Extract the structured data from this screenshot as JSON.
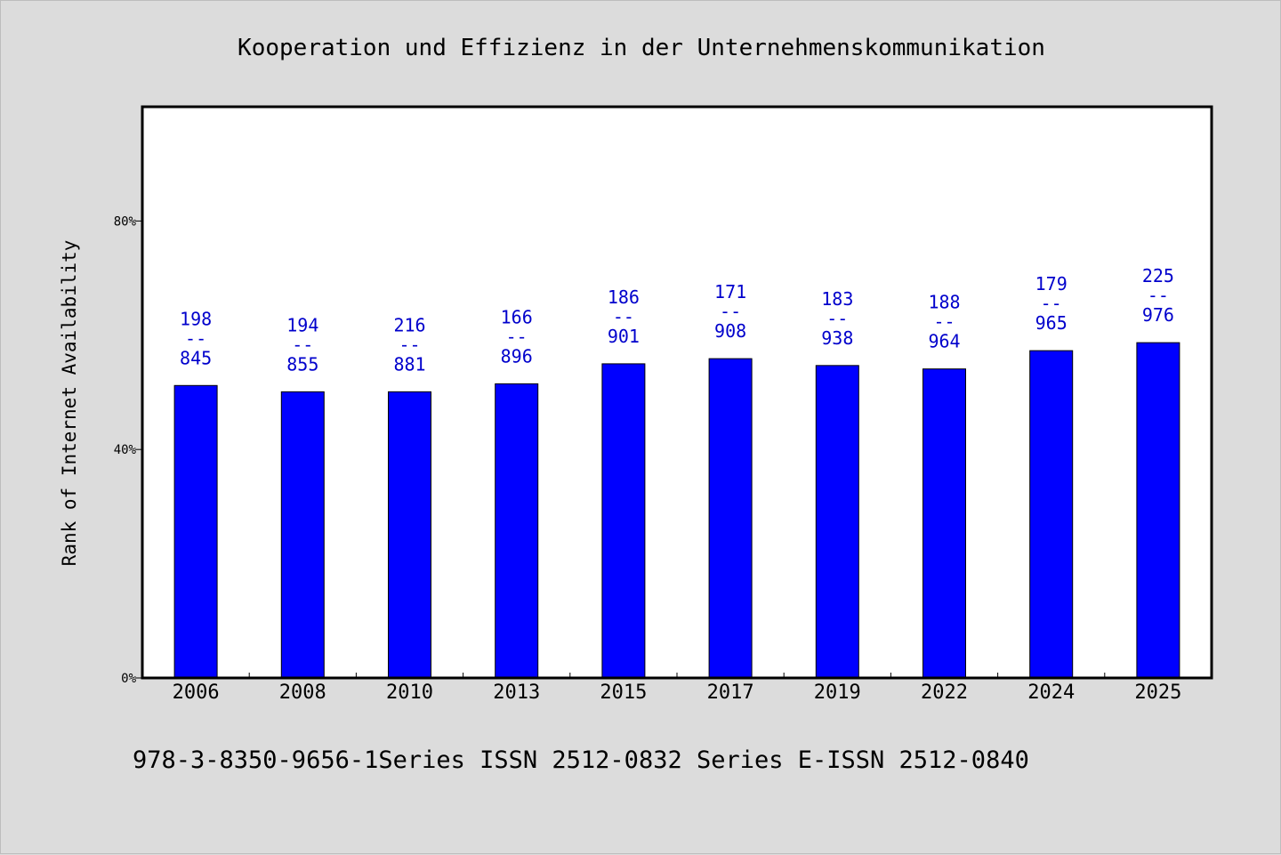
{
  "chart_data": {
    "type": "bar",
    "title": "Kooperation und Effizienz in der Unternehmenskommunikation",
    "xlabel": "",
    "ylabel": "Rank of Internet Availability",
    "categories": [
      "2006",
      "2008",
      "2010",
      "2013",
      "2015",
      "2017",
      "2019",
      "2022",
      "2024",
      "2025"
    ],
    "values": [
      51.2,
      50.1,
      50.1,
      51.5,
      55.0,
      55.9,
      54.7,
      54.1,
      57.3,
      58.7
    ],
    "data_labels": [
      [
        "198",
        "--",
        "845"
      ],
      [
        "194",
        "--",
        "855"
      ],
      [
        "216",
        "--",
        "881"
      ],
      [
        "166",
        "--",
        "896"
      ],
      [
        "186",
        "--",
        "901"
      ],
      [
        "171",
        "--",
        "908"
      ],
      [
        "183",
        "--",
        "938"
      ],
      [
        "188",
        "--",
        "964"
      ],
      [
        "179",
        "--",
        "965"
      ],
      [
        "225",
        "--",
        "976"
      ]
    ],
    "ylim": [
      0,
      100
    ],
    "yticks": [
      0,
      40,
      80
    ],
    "ytick_labels": [
      "0%",
      "40%",
      "80%"
    ],
    "bar_color": "#0000ff",
    "label_color": "#0000cc",
    "grid": false,
    "legend": "none"
  },
  "footer": {
    "text": "978-3-8350-9656-1Series ISSN 2512-0832 Series E-ISSN 2512-0840"
  },
  "colors": {
    "background": "#dcdcdc",
    "plot_background": "#ffffff"
  }
}
